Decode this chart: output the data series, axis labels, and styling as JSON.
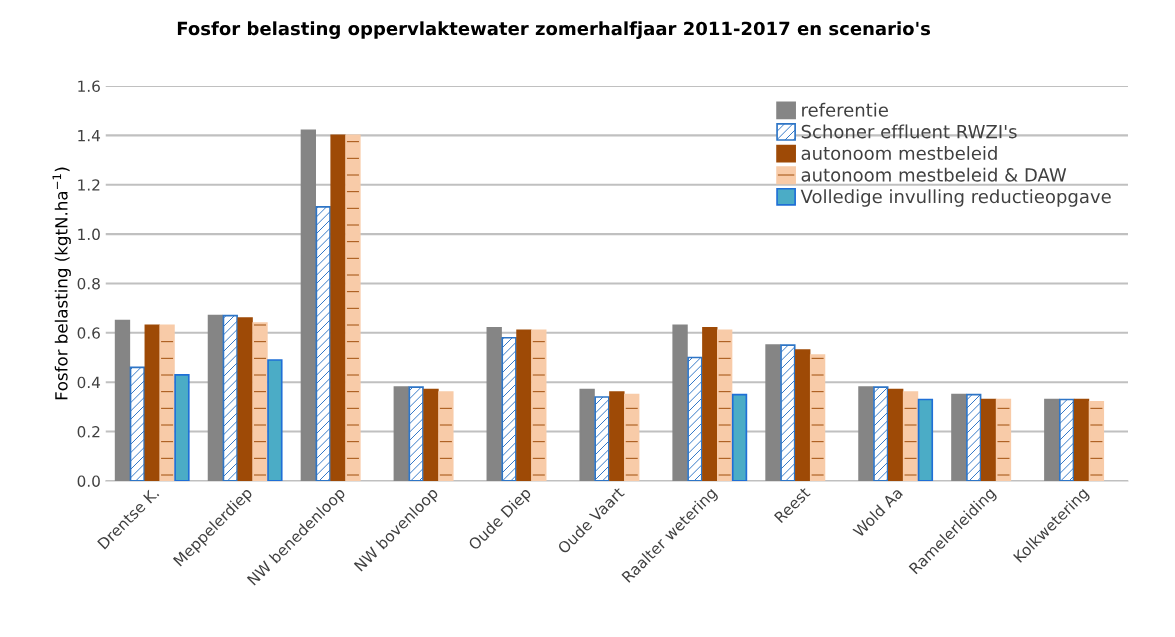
{
  "chart_data": {
    "type": "bar",
    "title": "Fosfor belasting oppervlaktewater zomerhalfjaar 2011-2017 en scenario's",
    "ylabel": "Fosfor belasting (kgtN.ha$^{−1}$)",
    "categories": [
      "Drentse K.",
      "Meppelerdiep",
      "NW benedenloop",
      "NW bovenloop",
      "Oude Diep",
      "Oude Vaart",
      "Raalter wetering",
      "Reest",
      "Wold Aa",
      "Ramelerleiding",
      "Kolkwetering"
    ],
    "series": [
      {
        "name": "referentie",
        "color": "#858585",
        "values": [
          0.65,
          0.67,
          1.42,
          0.38,
          0.62,
          0.37,
          0.63,
          0.55,
          0.38,
          0.35,
          0.33
        ]
      },
      {
        "name": "Schoner effluent RWZI's",
        "color": "#2e75c6",
        "values": [
          0.46,
          0.67,
          1.11,
          0.38,
          0.58,
          0.34,
          0.5,
          0.55,
          0.38,
          0.35,
          0.33
        ]
      },
      {
        "name": "autonoom mestbeleid",
        "color": "#9e4a06",
        "values": [
          0.63,
          0.66,
          1.4,
          0.37,
          0.61,
          0.36,
          0.62,
          0.53,
          0.37,
          0.33,
          0.33
        ]
      },
      {
        "name": "autonoom mestbeleid & DAW",
        "color": "#f8cba8",
        "values": [
          0.63,
          0.64,
          1.4,
          0.36,
          0.61,
          0.35,
          0.61,
          0.51,
          0.36,
          0.33,
          0.32
        ]
      },
      {
        "name": "Volledige invulling reductieopgave",
        "color": "#4bacc6",
        "values": [
          0.43,
          0.49,
          null,
          null,
          null,
          null,
          0.35,
          null,
          0.33,
          null,
          null
        ]
      }
    ],
    "ylim": [
      0,
      1.6
    ],
    "yticks": [
      {
        "value": 0,
        "label": "0.0"
      },
      {
        "value": 0.2,
        "label": "0.2"
      },
      {
        "value": 0.4,
        "label": "0.4"
      },
      {
        "value": 0.6,
        "label": "0.6"
      },
      {
        "value": 0.8,
        "label": "0.8"
      },
      {
        "value": 1.0,
        "label": "1.0"
      },
      {
        "value": 1.2,
        "label": "1.2"
      },
      {
        "value": 1.4,
        "label": "1.4"
      },
      {
        "value": 1.6,
        "label": "1.6"
      }
    ],
    "grid": "y",
    "legend": "top right"
  }
}
